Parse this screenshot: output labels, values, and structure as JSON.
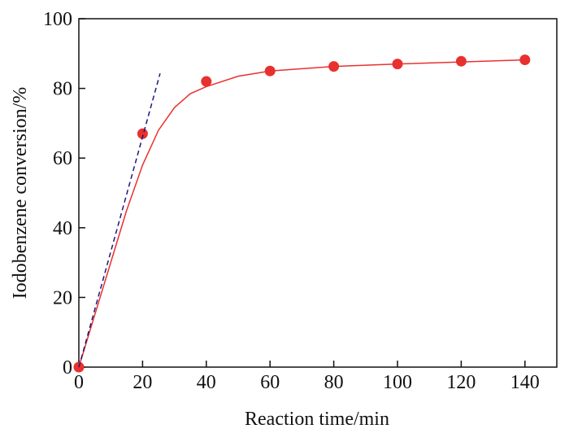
{
  "chart_data": {
    "type": "scatter",
    "x_label": "Reaction time/min",
    "y_label": "Iodobenzene conversion/%",
    "xlim": [
      0,
      150
    ],
    "xticks": [
      0,
      20,
      40,
      60,
      80,
      100,
      120,
      140
    ],
    "ylim": [
      0,
      100
    ],
    "yticks": [
      0,
      20,
      40,
      60,
      80,
      100
    ],
    "series": [
      {
        "kind": "points",
        "color": "#e8312f",
        "x": [
          0,
          20,
          40,
          60,
          80,
          100,
          120,
          140
        ],
        "values": [
          0,
          67,
          82,
          85,
          86.3,
          87,
          87.8,
          88.2
        ]
      },
      {
        "kind": "line",
        "color": "#e8312f",
        "x": [
          0,
          5,
          10,
          15,
          20,
          25,
          30,
          35,
          40,
          50,
          60,
          80,
          100,
          120,
          140
        ],
        "values": [
          0,
          15,
          30,
          45,
          58,
          68,
          74.5,
          78.5,
          80.5,
          83.5,
          85,
          86.3,
          87,
          87.6,
          88.2
        ]
      },
      {
        "kind": "dashed",
        "color": "#1a1a7a",
        "x": [
          0,
          25.5
        ],
        "values": [
          0,
          84.3
        ]
      }
    ]
  }
}
